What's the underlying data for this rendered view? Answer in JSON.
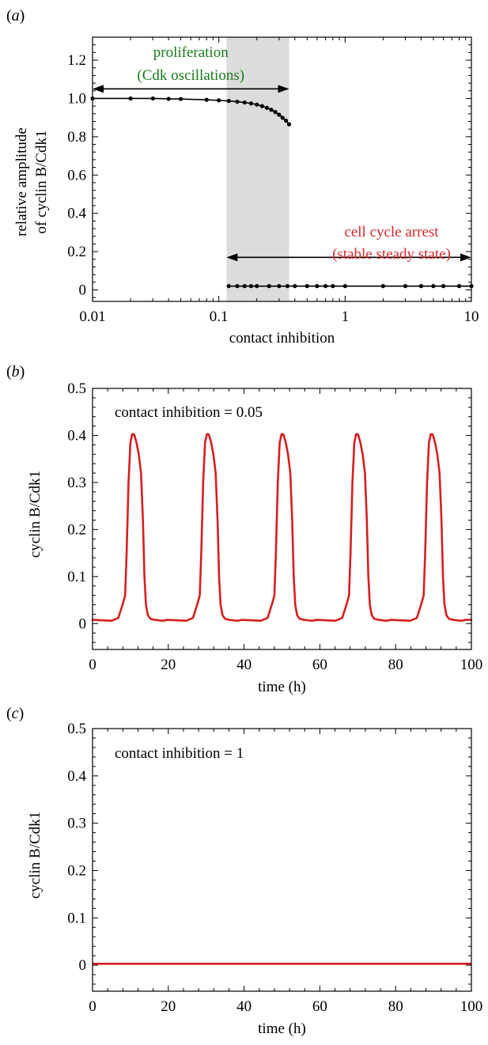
{
  "figure": {
    "panels": [
      {
        "label_pre": "(",
        "label_letter": "a",
        "label_post": ")"
      },
      {
        "label_pre": "(",
        "label_letter": "b",
        "label_post": ")"
      },
      {
        "label_pre": "(",
        "label_letter": "c",
        "label_post": ")"
      }
    ]
  },
  "colors": {
    "green_text": "#1a7a1a",
    "red_text": "#e0262b",
    "series_red": "#d81e1e",
    "shade": "#dcdcdc",
    "axis": "#000000"
  },
  "chart_data": [
    {
      "type": "scatter",
      "panel": "a",
      "xlabel": "contact inhibition",
      "ylabel": [
        "relative amplitude",
        "of cyclin B/Cdk1"
      ],
      "xscale": "log",
      "xlim": [
        0.01,
        10
      ],
      "ylim": [
        -0.06,
        1.32
      ],
      "xticks": [
        0.01,
        0.1,
        1,
        10
      ],
      "xtick_labels": [
        "0.01",
        "0.1",
        "1",
        "10"
      ],
      "yticks": [
        0,
        0.2,
        0.4,
        0.6,
        0.8,
        1.0,
        1.2
      ],
      "ytick_labels": [
        "0",
        "0.2",
        "0.4",
        "0.6",
        "0.8",
        "1.0",
        "1.2"
      ],
      "shaded_region": {
        "x": [
          0.115,
          0.36
        ]
      },
      "series": [
        {
          "x": [
            0.01,
            0.02,
            0.03,
            0.04,
            0.05,
            0.08,
            0.1,
            0.12,
            0.14,
            0.16,
            0.18,
            0.2,
            0.22,
            0.24,
            0.26,
            0.28,
            0.3,
            0.32,
            0.34,
            0.36
          ],
          "y": [
            1.0,
            1.0,
            1.0,
            0.998,
            0.997,
            0.993,
            0.99,
            0.987,
            0.983,
            0.979,
            0.974,
            0.968,
            0.96,
            0.951,
            0.941,
            0.929,
            0.915,
            0.899,
            0.884,
            0.865
          ]
        },
        {
          "x": [
            0.12,
            0.14,
            0.16,
            0.18,
            0.2,
            0.25,
            0.3,
            0.35,
            0.4,
            0.5,
            0.6,
            0.7,
            0.8,
            1.0,
            2.0,
            3.0,
            4.0,
            5.0,
            6.0,
            8.0,
            10.0
          ],
          "y": [
            0.02,
            0.02,
            0.02,
            0.02,
            0.02,
            0.02,
            0.02,
            0.02,
            0.02,
            0.02,
            0.02,
            0.02,
            0.02,
            0.02,
            0.02,
            0.02,
            0.02,
            0.02,
            0.02,
            0.02,
            0.02
          ]
        }
      ],
      "annotations": [
        {
          "lines": [
            "proliferation",
            "(Cdk oscillations)"
          ],
          "color": "green",
          "arrow": [
            0.01,
            0.36
          ],
          "arrow_y": 1.05
        },
        {
          "lines": [
            "cell cycle arrest",
            "(stable steady state)"
          ],
          "color": "red",
          "arrow": [
            0.115,
            10
          ],
          "arrow_y": 0.17
        }
      ]
    },
    {
      "type": "line",
      "panel": "b",
      "xlabel": "time (h)",
      "ylabel": "cyclin B/Cdk1",
      "xlim": [
        0,
        100
      ],
      "ylim": [
        -0.055,
        0.5
      ],
      "xticks": [
        0,
        20,
        40,
        60,
        80,
        100
      ],
      "xtick_labels": [
        "0",
        "20",
        "40",
        "60",
        "80",
        "100"
      ],
      "yticks": [
        0,
        0.1,
        0.2,
        0.3,
        0.4,
        0.5
      ],
      "ytick_labels": [
        "0",
        "0.1",
        "0.2",
        "0.3",
        "0.4",
        "0.5"
      ],
      "annotation": "contact inhibition = 0.05",
      "period": 19.7,
      "series": [
        {
          "cycle_x": [
            0,
            5,
            6.8,
            7.6,
            8.1,
            8.6,
            9.0,
            9.5,
            10.0,
            10.5,
            11.0,
            11.6,
            12.2,
            12.8,
            13.3,
            13.7,
            14.1,
            14.6,
            15.3,
            16.5,
            18.5,
            19.7
          ],
          "cycle_y": [
            0.008,
            0.006,
            0.012,
            0.032,
            0.045,
            0.06,
            0.15,
            0.3,
            0.385,
            0.403,
            0.402,
            0.385,
            0.36,
            0.32,
            0.22,
            0.1,
            0.04,
            0.018,
            0.01,
            0.008,
            0.006,
            0.008
          ]
        }
      ]
    },
    {
      "type": "line",
      "panel": "c",
      "xlabel": "time (h)",
      "ylabel": "cyclin B/Cdk1",
      "xlim": [
        0,
        100
      ],
      "ylim": [
        -0.055,
        0.5
      ],
      "xticks": [
        0,
        20,
        40,
        60,
        80,
        100
      ],
      "xtick_labels": [
        "0",
        "20",
        "40",
        "60",
        "80",
        "100"
      ],
      "yticks": [
        0,
        0.1,
        0.2,
        0.3,
        0.4,
        0.5
      ],
      "ytick_labels": [
        "0",
        "0.1",
        "0.2",
        "0.3",
        "0.4",
        "0.5"
      ],
      "annotation": "contact inhibition = 1",
      "series": [
        {
          "x": [
            0,
            100
          ],
          "y": [
            0.003,
            0.003
          ]
        }
      ]
    }
  ]
}
